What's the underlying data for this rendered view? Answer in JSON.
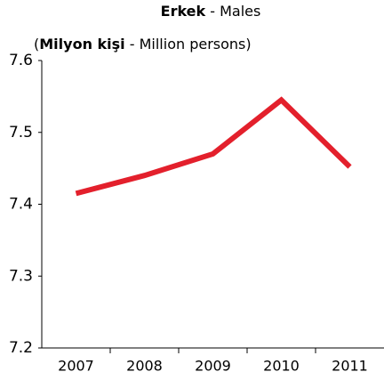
{
  "chart_data": {
    "type": "line",
    "title": [
      "Erkek",
      " - Males"
    ],
    "subtitle": [
      "(",
      "Milyon kişi",
      " - Million persons)"
    ],
    "categories": [
      "2007",
      "2008",
      "2009",
      "2010",
      "2011"
    ],
    "series": [
      {
        "name": "Erkek",
        "color": "#e3202c",
        "values": [
          7.415,
          7.44,
          7.47,
          7.545,
          7.452
        ]
      }
    ],
    "ylim": [
      7.2,
      7.6
    ],
    "yticks": [
      7.2,
      7.3,
      7.4,
      7.5,
      7.6
    ],
    "grid": false
  }
}
